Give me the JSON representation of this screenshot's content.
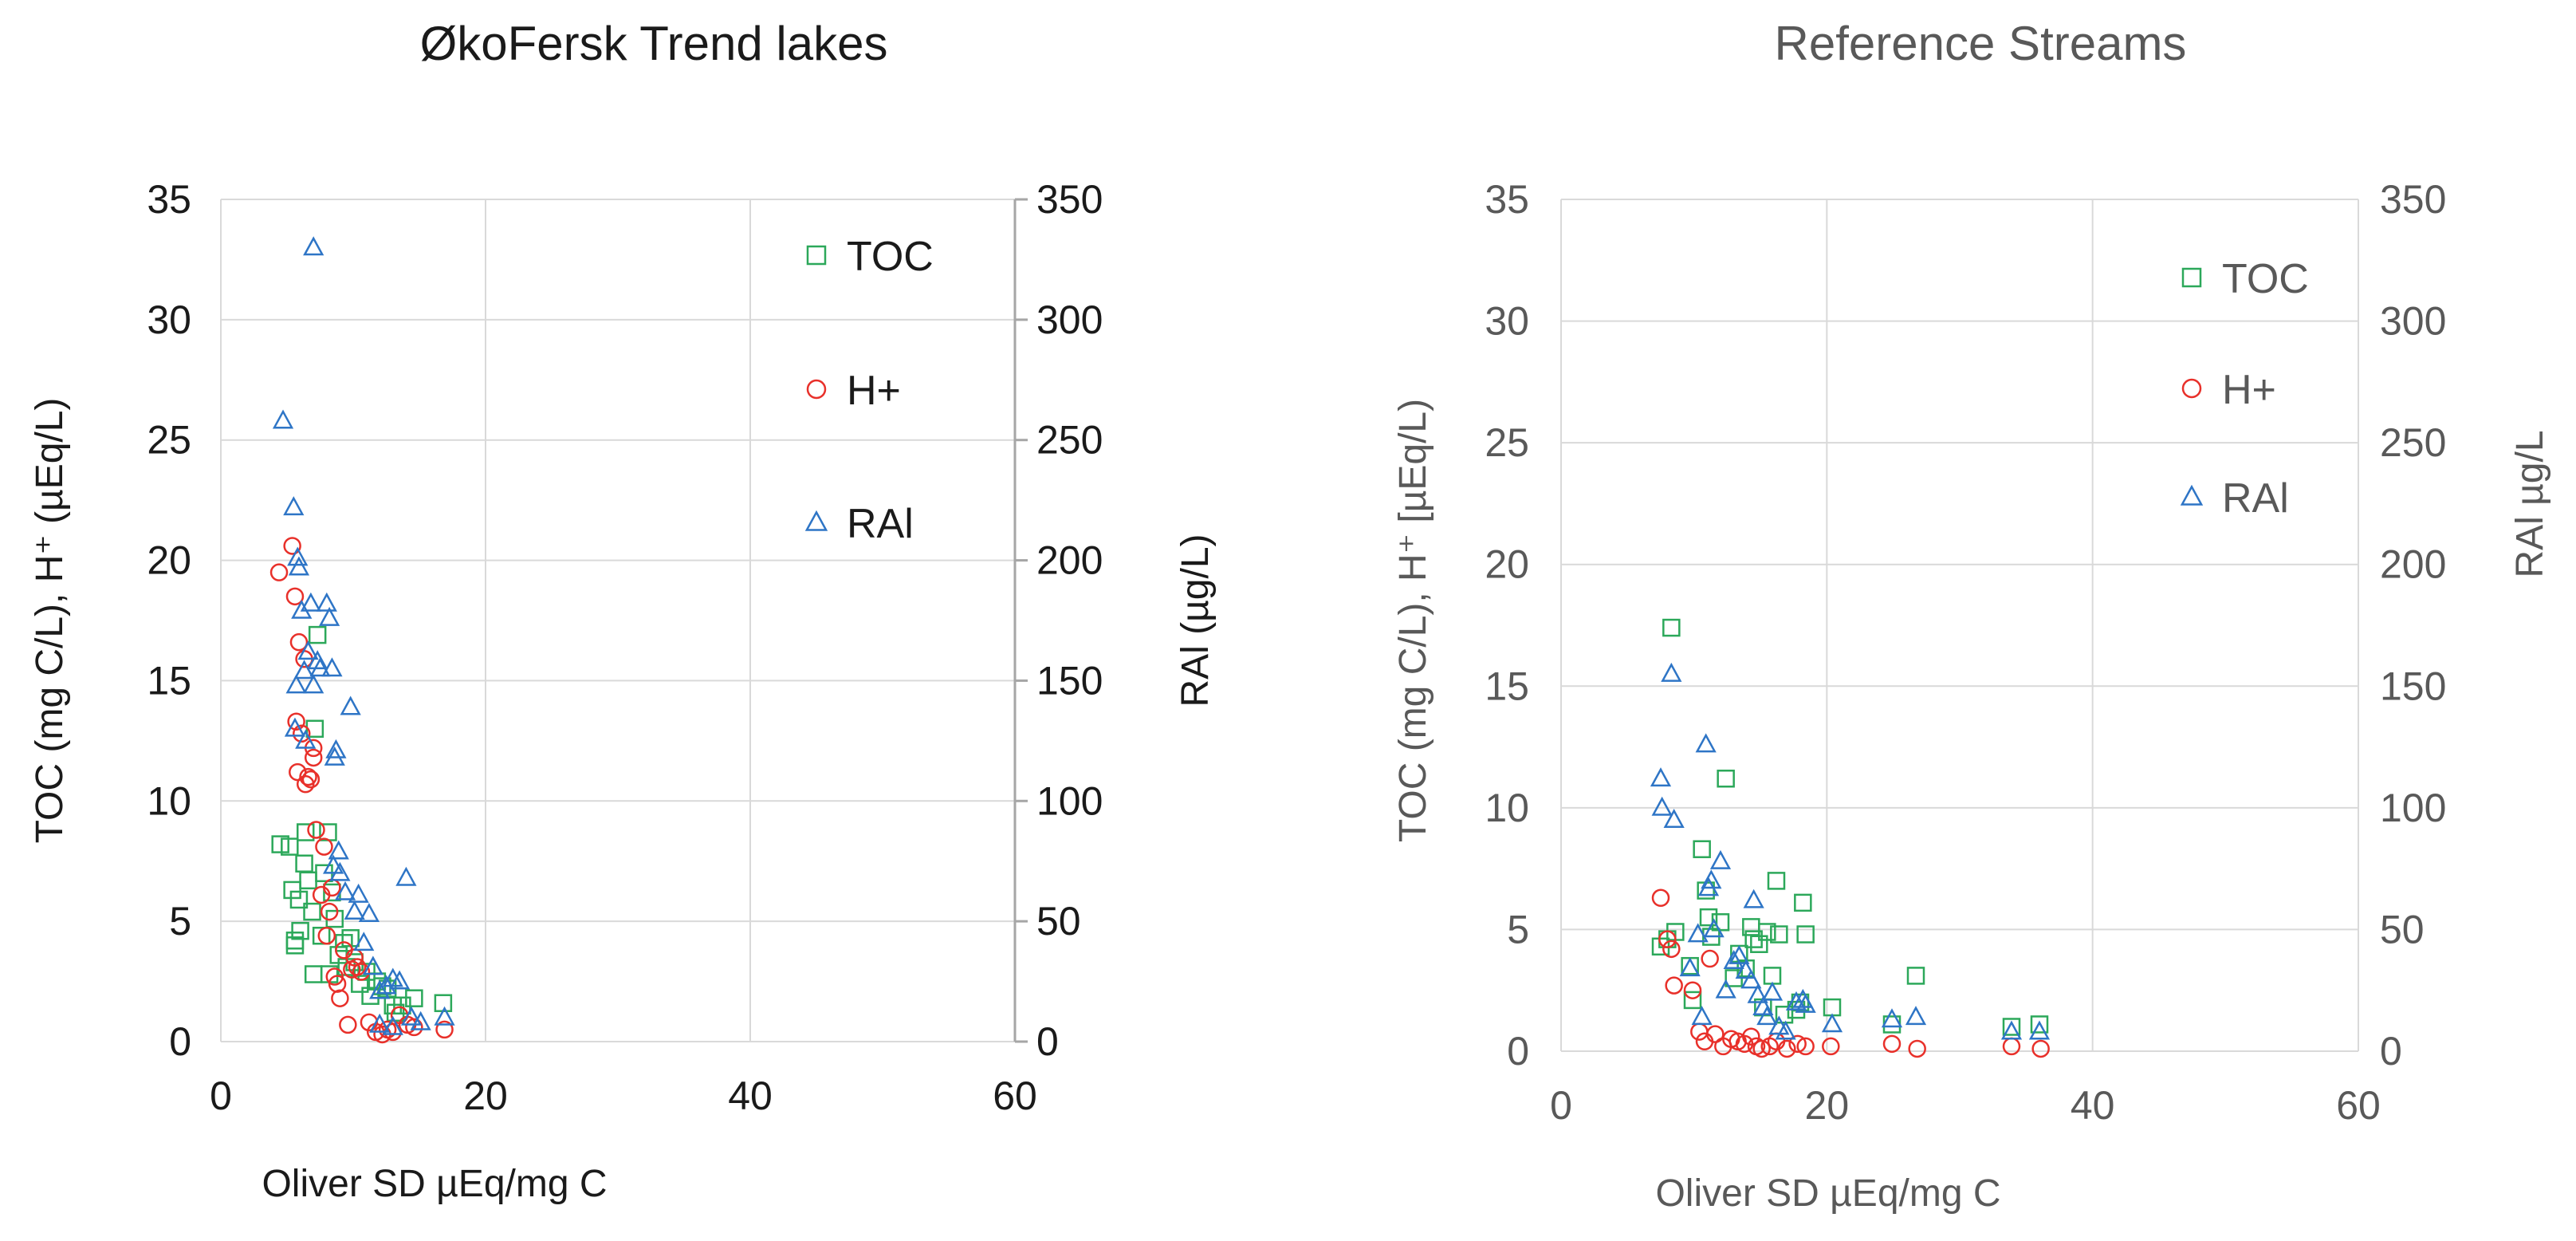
{
  "colors": {
    "toc": "#2ca85a",
    "h": "#e8302a",
    "ral": "#2e75c6"
  },
  "chart_data": [
    {
      "type": "scatter",
      "title": "ØkoFersk Trend lakes",
      "xlabel": "Oliver SD µEq/mg C",
      "ylabel": "TOC (mg C/L), H⁺ (µEq/L)",
      "y2label": "RAl (µg/L)",
      "xlim": [
        0,
        60
      ],
      "ylim": [
        0,
        35
      ],
      "y2lim": [
        0,
        350
      ],
      "xticks": [
        "0",
        "20",
        "40",
        "60"
      ],
      "yticks": [
        "0",
        "5",
        "10",
        "15",
        "20",
        "25",
        "30",
        "35"
      ],
      "y2ticks": [
        "0",
        "50",
        "100",
        "150",
        "200",
        "250",
        "300",
        "350"
      ],
      "legend": [
        "TOC",
        "H+",
        "RAl"
      ],
      "series": [
        {
          "name": "TOC",
          "axis": "left",
          "marker": "square",
          "points": [
            [
              4.5,
              8.2
            ],
            [
              5.2,
              8.1
            ],
            [
              5.4,
              6.3
            ],
            [
              5.6,
              4.2
            ],
            [
              5.6,
              4.0
            ],
            [
              5.9,
              5.9
            ],
            [
              6.0,
              4.6
            ],
            [
              6.3,
              7.4
            ],
            [
              6.4,
              8.7
            ],
            [
              6.6,
              6.7
            ],
            [
              6.9,
              5.4
            ],
            [
              7.0,
              2.8
            ],
            [
              7.1,
              13.0
            ],
            [
              7.3,
              16.9
            ],
            [
              7.6,
              4.4
            ],
            [
              7.8,
              7.0
            ],
            [
              8.1,
              8.7
            ],
            [
              8.2,
              2.8
            ],
            [
              8.4,
              6.2
            ],
            [
              8.6,
              5.1
            ],
            [
              8.9,
              3.6
            ],
            [
              9.3,
              4.1
            ],
            [
              9.5,
              3.1
            ],
            [
              9.8,
              4.3
            ],
            [
              10.1,
              3.3
            ],
            [
              10.5,
              2.4
            ],
            [
              11.0,
              2.9
            ],
            [
              11.3,
              1.9
            ],
            [
              11.8,
              2.5
            ],
            [
              12.2,
              2.3
            ],
            [
              12.6,
              2.2
            ],
            [
              13.0,
              1.5
            ],
            [
              13.2,
              1.2
            ],
            [
              13.7,
              1.5
            ],
            [
              14.6,
              1.8
            ],
            [
              16.8,
              1.6
            ]
          ]
        },
        {
          "name": "H+",
          "axis": "left",
          "marker": "circle",
          "points": [
            [
              4.4,
              19.5
            ],
            [
              5.4,
              20.6
            ],
            [
              5.6,
              18.5
            ],
            [
              5.7,
              13.3
            ],
            [
              5.8,
              11.2
            ],
            [
              5.9,
              16.6
            ],
            [
              6.1,
              12.8
            ],
            [
              6.3,
              15.9
            ],
            [
              6.4,
              10.7
            ],
            [
              6.6,
              11.0
            ],
            [
              6.8,
              10.9
            ],
            [
              7.0,
              11.8
            ],
            [
              7.0,
              12.2
            ],
            [
              7.2,
              8.8
            ],
            [
              7.6,
              6.1
            ],
            [
              7.8,
              8.1
            ],
            [
              8.0,
              4.4
            ],
            [
              8.2,
              5.4
            ],
            [
              8.4,
              6.4
            ],
            [
              8.6,
              2.7
            ],
            [
              8.8,
              2.4
            ],
            [
              9.0,
              1.8
            ],
            [
              9.3,
              3.8
            ],
            [
              9.6,
              0.7
            ],
            [
              9.9,
              3.0
            ],
            [
              10.1,
              3.5
            ],
            [
              10.3,
              3.1
            ],
            [
              10.6,
              2.9
            ],
            [
              11.2,
              0.8
            ],
            [
              11.7,
              0.4
            ],
            [
              12.2,
              0.3
            ],
            [
              12.6,
              0.5
            ],
            [
              13.0,
              0.4
            ],
            [
              13.5,
              1.1
            ],
            [
              14.1,
              0.7
            ],
            [
              14.6,
              0.6
            ],
            [
              16.9,
              0.5
            ]
          ]
        },
        {
          "name": "RAl",
          "axis": "right",
          "marker": "triangle",
          "points": [
            [
              4.7,
              258
            ],
            [
              5.5,
              222
            ],
            [
              5.6,
              130
            ],
            [
              5.7,
              148
            ],
            [
              5.8,
              201
            ],
            [
              5.9,
              197
            ],
            [
              6.1,
              179
            ],
            [
              6.3,
              154
            ],
            [
              6.4,
              125
            ],
            [
              6.6,
              162
            ],
            [
              6.8,
              182
            ],
            [
              7.0,
              148
            ],
            [
              7.0,
              330
            ],
            [
              7.3,
              158
            ],
            [
              7.5,
              155
            ],
            [
              8.0,
              182
            ],
            [
              8.2,
              176
            ],
            [
              8.4,
              155
            ],
            [
              8.5,
              73
            ],
            [
              8.6,
              118
            ],
            [
              8.7,
              121
            ],
            [
              8.9,
              79
            ],
            [
              9.0,
              70
            ],
            [
              9.4,
              62
            ],
            [
              9.8,
              139
            ],
            [
              10.1,
              54
            ],
            [
              10.4,
              61
            ],
            [
              10.8,
              41
            ],
            [
              11.2,
              53
            ],
            [
              11.5,
              31
            ],
            [
              12.0,
              21
            ],
            [
              12.5,
              23
            ],
            [
              13.0,
              26
            ],
            [
              13.5,
              25
            ],
            [
              14.0,
              68
            ],
            [
              14.4,
              10
            ],
            [
              15.1,
              8
            ],
            [
              16.9,
              10
            ],
            [
              12.0,
              7
            ],
            [
              13.0,
              6
            ]
          ]
        }
      ]
    },
    {
      "type": "scatter",
      "title": "Reference Streams",
      "xlabel": "Oliver SD µEq/mg C",
      "ylabel": "TOC (mg C/L), H⁺ [µEq/L)",
      "y2label": "RAl µg/L",
      "xlim": [
        0,
        60
      ],
      "ylim": [
        0,
        35
      ],
      "y2lim": [
        0,
        350
      ],
      "xticks": [
        "0",
        "20",
        "40",
        "60"
      ],
      "yticks": [
        "0",
        "5",
        "10",
        "15",
        "20",
        "25",
        "30",
        "35"
      ],
      "y2ticks": [
        "0",
        "50",
        "100",
        "150",
        "200",
        "250",
        "300",
        "350"
      ],
      "legend": [
        "TOC",
        "H+",
        "RAl"
      ],
      "series": [
        {
          "name": "TOC",
          "axis": "left",
          "marker": "square",
          "points": [
            [
              7.5,
              4.3
            ],
            [
              8.0,
              4.6
            ],
            [
              8.3,
              17.4
            ],
            [
              8.6,
              4.9
            ],
            [
              9.7,
              3.5
            ],
            [
              9.9,
              2.1
            ],
            [
              10.6,
              8.3
            ],
            [
              10.9,
              6.6
            ],
            [
              11.1,
              5.5
            ],
            [
              11.3,
              4.7
            ],
            [
              12.0,
              5.3
            ],
            [
              12.4,
              11.2
            ],
            [
              13.0,
              3.0
            ],
            [
              13.4,
              4.0
            ],
            [
              13.9,
              3.4
            ],
            [
              14.3,
              5.1
            ],
            [
              14.5,
              4.6
            ],
            [
              14.9,
              4.4
            ],
            [
              15.2,
              1.8
            ],
            [
              15.5,
              4.9
            ],
            [
              15.9,
              3.1
            ],
            [
              16.2,
              7.0
            ],
            [
              16.4,
              4.8
            ],
            [
              16.8,
              1.5
            ],
            [
              17.7,
              1.7
            ],
            [
              18.2,
              6.1
            ],
            [
              18.4,
              4.8
            ],
            [
              20.4,
              1.8
            ],
            [
              24.9,
              1.1
            ],
            [
              26.7,
              3.1
            ],
            [
              33.9,
              1.0
            ],
            [
              36.0,
              1.1
            ],
            [
              18.0,
              2.0
            ]
          ]
        },
        {
          "name": "H+",
          "axis": "left",
          "marker": "circle",
          "points": [
            [
              7.5,
              6.3
            ],
            [
              8.0,
              4.6
            ],
            [
              8.3,
              4.2
            ],
            [
              8.5,
              2.7
            ],
            [
              9.9,
              2.5
            ],
            [
              10.4,
              0.8
            ],
            [
              10.8,
              0.4
            ],
            [
              11.2,
              3.8
            ],
            [
              11.6,
              0.7
            ],
            [
              12.2,
              0.2
            ],
            [
              12.8,
              0.5
            ],
            [
              13.3,
              0.4
            ],
            [
              13.8,
              0.3
            ],
            [
              14.3,
              0.6
            ],
            [
              14.7,
              0.2
            ],
            [
              15.1,
              0.1
            ],
            [
              15.7,
              0.2
            ],
            [
              16.2,
              0.4
            ],
            [
              17.0,
              0.1
            ],
            [
              17.8,
              0.3
            ],
            [
              18.4,
              0.2
            ],
            [
              20.3,
              0.2
            ],
            [
              24.9,
              0.3
            ],
            [
              26.8,
              0.1
            ],
            [
              33.9,
              0.2
            ],
            [
              36.1,
              0.1
            ]
          ]
        },
        {
          "name": "RAl",
          "axis": "right",
          "marker": "triangle",
          "points": [
            [
              7.5,
              112
            ],
            [
              7.6,
              100
            ],
            [
              8.3,
              155
            ],
            [
              8.5,
              95
            ],
            [
              9.7,
              34
            ],
            [
              10.3,
              48
            ],
            [
              10.6,
              14
            ],
            [
              10.9,
              126
            ],
            [
              11.1,
              67
            ],
            [
              11.3,
              70
            ],
            [
              11.5,
              50
            ],
            [
              12.0,
              78
            ],
            [
              12.4,
              25
            ],
            [
              13.0,
              37
            ],
            [
              13.4,
              39
            ],
            [
              13.9,
              33
            ],
            [
              14.3,
              29
            ],
            [
              14.5,
              62
            ],
            [
              14.8,
              23
            ],
            [
              15.2,
              18
            ],
            [
              15.5,
              14
            ],
            [
              15.9,
              24
            ],
            [
              16.4,
              10
            ],
            [
              16.9,
              8
            ],
            [
              17.7,
              20
            ],
            [
              18.2,
              21
            ],
            [
              18.4,
              19
            ],
            [
              20.4,
              11
            ],
            [
              24.9,
              13
            ],
            [
              26.7,
              14
            ],
            [
              33.9,
              8
            ],
            [
              36.0,
              8
            ]
          ]
        }
      ]
    }
  ]
}
